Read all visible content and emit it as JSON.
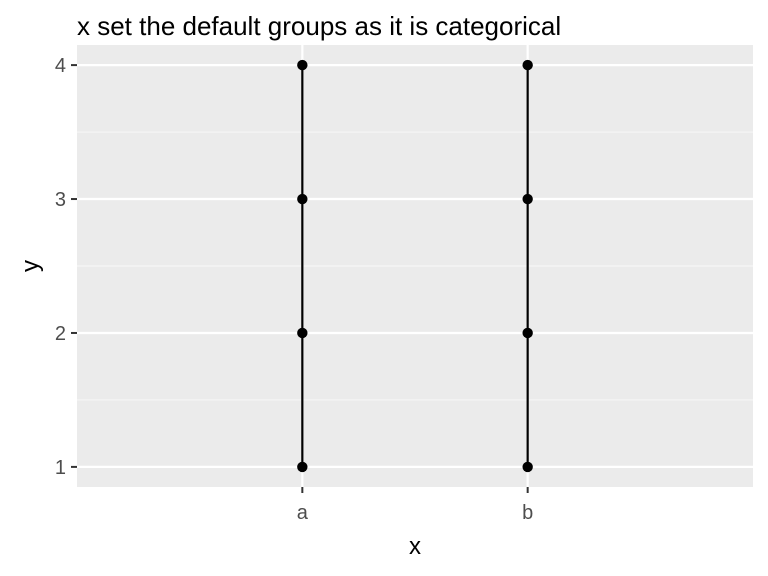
{
  "chart_data": {
    "type": "line",
    "title": "x set the default groups as it is categorical",
    "xlabel": "x",
    "ylabel": "y",
    "categories": [
      "a",
      "b"
    ],
    "y_ticks": [
      1,
      2,
      3,
      4
    ],
    "y_tick_labels": [
      "1",
      "2",
      "3",
      "4"
    ],
    "ylim": [
      0.85,
      4.15
    ],
    "grid": true,
    "legend": "none",
    "groups": [
      {
        "x": "a",
        "y": [
          1,
          2,
          3,
          4
        ]
      },
      {
        "x": "b",
        "y": [
          1,
          2,
          3,
          4
        ]
      }
    ],
    "colors": {
      "panel_bg": "#ebebeb",
      "grid_major": "#ffffff",
      "grid_minor": "#f5f5f5",
      "line": "#000000",
      "point": "#000000",
      "tick": "#333333"
    }
  }
}
